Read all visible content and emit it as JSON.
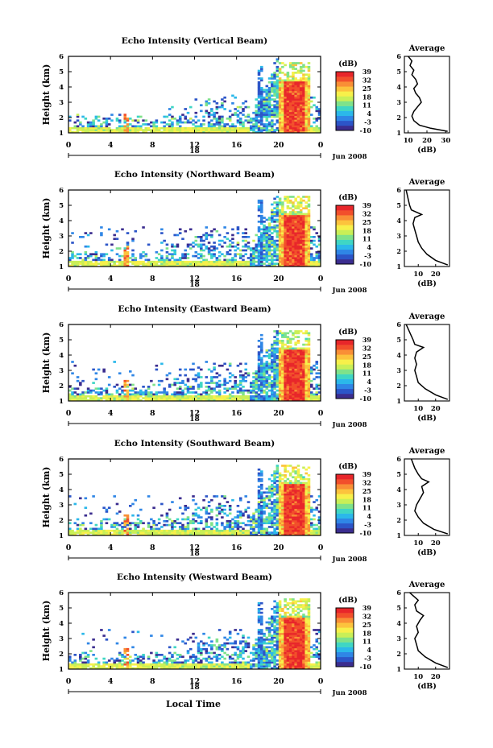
{
  "figure": {
    "date_label": "Jun 2008",
    "x_axis_title": "Local Time",
    "day_label": "18",
    "height_unit_label": "Height (km)",
    "colorbar_unit": "(dB)",
    "average_title": "Average",
    "average_xlabel": "(dB)"
  },
  "colors": {
    "colormap": [
      "#3b2d8f",
      "#2c55c8",
      "#2f86e6",
      "#2bb8ea",
      "#3fd6c4",
      "#7fe28a",
      "#c9ef57",
      "#f7f04a",
      "#fcc33d",
      "#f98f36",
      "#f24f2b",
      "#e8262a"
    ],
    "background": "#ffffff",
    "axis": "#000000"
  },
  "chart_data": [
    {
      "type": "heatmap",
      "title": "Echo Intensity (Vertical Beam)",
      "ylabel": "Height (km)",
      "x_ticks": [
        "0",
        "4",
        "8",
        "12",
        "16",
        "20",
        "0"
      ],
      "y_ticks": [
        "1",
        "2",
        "3",
        "4",
        "5",
        "6"
      ],
      "xlim": [
        0,
        24
      ],
      "ylim": [
        1,
        6
      ],
      "colorbar": {
        "label": "(dB)",
        "ticks": [
          "39",
          "32",
          "25",
          "18",
          "11",
          "4",
          "-3",
          "-10"
        ],
        "range": [
          -10,
          39
        ]
      },
      "average": {
        "title": "Average",
        "xlabel": "(dB)",
        "x_ticks": [
          "10",
          "20",
          "30"
        ],
        "xlim": [
          8,
          32
        ],
        "profile": [
          [
            31,
            1.1
          ],
          [
            22,
            1.3
          ],
          [
            16,
            1.5
          ],
          [
            13,
            1.8
          ],
          [
            12,
            2.1
          ],
          [
            13,
            2.4
          ],
          [
            15,
            2.7
          ],
          [
            17,
            3.0
          ],
          [
            16,
            3.3
          ],
          [
            14,
            3.6
          ],
          [
            13,
            3.9
          ],
          [
            15,
            4.2
          ],
          [
            14,
            4.5
          ],
          [
            12,
            4.8
          ],
          [
            13,
            5.1
          ],
          [
            11,
            5.4
          ],
          [
            12,
            5.7
          ],
          [
            10,
            6.0
          ]
        ]
      }
    },
    {
      "type": "heatmap",
      "title": "Echo Intensity (Northward Beam)",
      "ylabel": "Height (km)",
      "x_ticks": [
        "0",
        "4",
        "8",
        "12",
        "16",
        "20",
        "0"
      ],
      "y_ticks": [
        "1",
        "2",
        "3",
        "4",
        "5",
        "6"
      ],
      "xlim": [
        0,
        24
      ],
      "ylim": [
        1,
        6
      ],
      "colorbar": {
        "label": "(dB)",
        "ticks": [
          "39",
          "32",
          "25",
          "18",
          "11",
          "4",
          "-3",
          "-10"
        ],
        "range": [
          -10,
          39
        ]
      },
      "average": {
        "title": "Average",
        "xlabel": "(dB)",
        "x_ticks": [
          "10",
          "20"
        ],
        "xlim": [
          2,
          28
        ],
        "profile": [
          [
            27,
            1.1
          ],
          [
            20,
            1.4
          ],
          [
            15,
            1.8
          ],
          [
            12,
            2.2
          ],
          [
            10,
            2.6
          ],
          [
            9,
            3.0
          ],
          [
            8,
            3.4
          ],
          [
            7,
            3.8
          ],
          [
            8,
            4.2
          ],
          [
            12,
            4.4
          ],
          [
            6,
            4.7
          ],
          [
            5,
            5.0
          ],
          [
            4,
            5.5
          ],
          [
            3,
            6.0
          ]
        ]
      }
    },
    {
      "type": "heatmap",
      "title": "Echo Intensity (Eastward Beam)",
      "ylabel": "Height (km)",
      "x_ticks": [
        "0",
        "4",
        "8",
        "12",
        "16",
        "20",
        "0"
      ],
      "y_ticks": [
        "1",
        "2",
        "3",
        "4",
        "5",
        "6"
      ],
      "xlim": [
        0,
        24
      ],
      "ylim": [
        1,
        6
      ],
      "colorbar": {
        "label": "(dB)",
        "ticks": [
          "39",
          "32",
          "25",
          "18",
          "11",
          "4",
          "-3",
          "-10"
        ],
        "range": [
          -10,
          39
        ]
      },
      "average": {
        "title": "Average",
        "xlabel": "(dB)",
        "x_ticks": [
          "10",
          "20"
        ],
        "xlim": [
          2,
          28
        ],
        "profile": [
          [
            27,
            1.1
          ],
          [
            20,
            1.4
          ],
          [
            14,
            1.8
          ],
          [
            10,
            2.2
          ],
          [
            9,
            2.6
          ],
          [
            8,
            3.0
          ],
          [
            9,
            3.4
          ],
          [
            8,
            3.8
          ],
          [
            9,
            4.2
          ],
          [
            13,
            4.5
          ],
          [
            8,
            4.7
          ],
          [
            7,
            5.0
          ],
          [
            5,
            5.5
          ],
          [
            3,
            6.0
          ]
        ]
      }
    },
    {
      "type": "heatmap",
      "title": "Echo Intensity (Southward Beam)",
      "ylabel": "Height (km)",
      "x_ticks": [
        "0",
        "4",
        "8",
        "12",
        "16",
        "20",
        "0"
      ],
      "y_ticks": [
        "1",
        "2",
        "3",
        "4",
        "5",
        "6"
      ],
      "xlim": [
        0,
        24
      ],
      "ylim": [
        1,
        6
      ],
      "colorbar": {
        "label": "(dB)",
        "ticks": [
          "39",
          "32",
          "25",
          "18",
          "11",
          "4",
          "-3",
          "-10"
        ],
        "range": [
          -10,
          39
        ]
      },
      "average": {
        "title": "Average",
        "xlabel": "(dB)",
        "x_ticks": [
          "10",
          "20"
        ],
        "xlim": [
          2,
          28
        ],
        "profile": [
          [
            27,
            1.1
          ],
          [
            19,
            1.4
          ],
          [
            13,
            1.8
          ],
          [
            10,
            2.2
          ],
          [
            8,
            2.6
          ],
          [
            9,
            3.0
          ],
          [
            11,
            3.4
          ],
          [
            13,
            3.8
          ],
          [
            12,
            4.2
          ],
          [
            16,
            4.5
          ],
          [
            12,
            4.7
          ],
          [
            10,
            5.0
          ],
          [
            8,
            5.4
          ],
          [
            6,
            6.0
          ]
        ]
      }
    },
    {
      "type": "heatmap",
      "title": "Echo Intensity (Westward Beam)",
      "ylabel": "Height (km)",
      "x_ticks": [
        "0",
        "4",
        "8",
        "12",
        "16",
        "20",
        "0"
      ],
      "y_ticks": [
        "1",
        "2",
        "3",
        "4",
        "5",
        "6"
      ],
      "xlim": [
        0,
        24
      ],
      "ylim": [
        1,
        6
      ],
      "colorbar": {
        "label": "(dB)",
        "ticks": [
          "39",
          "32",
          "25",
          "18",
          "11",
          "4",
          "-3",
          "-10"
        ],
        "range": [
          -10,
          39
        ]
      },
      "average": {
        "title": "Average",
        "xlabel": "(dB)",
        "x_ticks": [
          "10",
          "20"
        ],
        "xlim": [
          2,
          28
        ],
        "profile": [
          [
            27,
            1.1
          ],
          [
            20,
            1.4
          ],
          [
            14,
            1.8
          ],
          [
            10,
            2.2
          ],
          [
            9,
            2.6
          ],
          [
            8,
            3.0
          ],
          [
            10,
            3.4
          ],
          [
            9,
            3.8
          ],
          [
            11,
            4.2
          ],
          [
            13,
            4.5
          ],
          [
            9,
            4.8
          ],
          [
            8,
            5.2
          ],
          [
            10,
            5.5
          ],
          [
            7,
            5.8
          ],
          [
            5,
            6.0
          ]
        ]
      }
    }
  ]
}
